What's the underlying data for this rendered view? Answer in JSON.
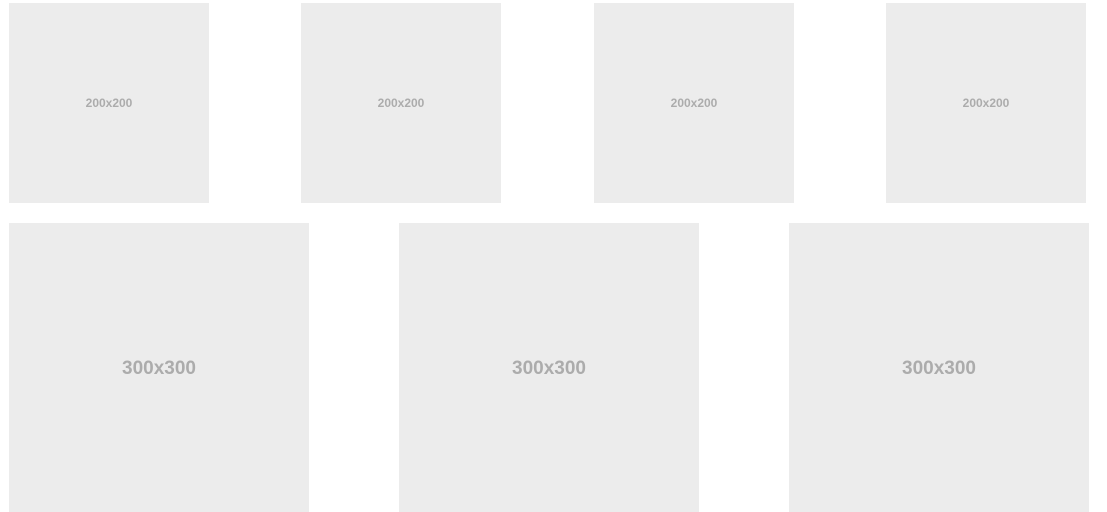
{
  "thumbnails_small": [
    {
      "label": "200x200"
    },
    {
      "label": "200x200"
    },
    {
      "label": "200x200"
    },
    {
      "label": "200x200"
    }
  ],
  "thumbnails_large": [
    {
      "label": "300x300"
    },
    {
      "label": "300x300"
    },
    {
      "label": "300x300"
    }
  ],
  "colors": {
    "placeholder_bg": "#ececec",
    "placeholder_text": "#acacac",
    "page_bg": "#ffffff"
  }
}
